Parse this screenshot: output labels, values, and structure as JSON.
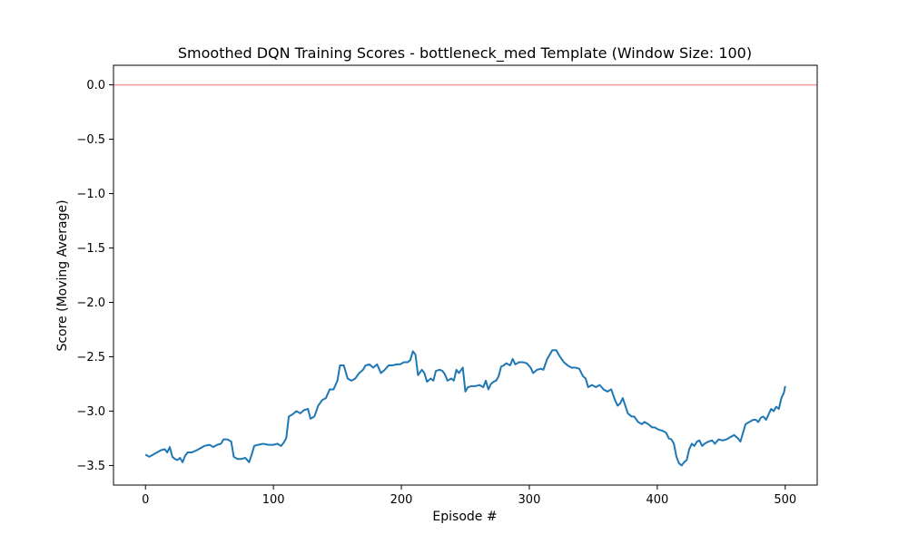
{
  "chart_data": {
    "type": "line",
    "title": "Smoothed DQN Training Scores - bottleneck_med Template (Window Size: 100)",
    "xlabel": "Episode #",
    "ylabel": "Score (Moving Average)",
    "xlim": [
      -25,
      525
    ],
    "ylim": [
      -3.68,
      0.18
    ],
    "xticks": [
      0,
      100,
      200,
      300,
      400,
      500
    ],
    "yticks": [
      0.0,
      -0.5,
      -1.0,
      -1.5,
      -2.0,
      -2.5,
      -3.0,
      -3.5
    ],
    "xtick_labels": [
      "0",
      "100",
      "200",
      "300",
      "400",
      "500"
    ],
    "ytick_labels": [
      "0.0",
      "−0.5",
      "−1.0",
      "−1.5",
      "−2.0",
      "−2.5",
      "−3.0",
      "−3.5"
    ],
    "grid": false,
    "reference_line": {
      "y": 0.0,
      "color": "#ff9999"
    },
    "series": [
      {
        "color": "#1f77b4",
        "points": [
          [
            0,
            -3.4
          ],
          [
            3,
            -3.42
          ],
          [
            6,
            -3.4
          ],
          [
            9,
            -3.38
          ],
          [
            12,
            -3.36
          ],
          [
            15,
            -3.35
          ],
          [
            17,
            -3.38
          ],
          [
            19,
            -3.33
          ],
          [
            21,
            -3.42
          ],
          [
            23,
            -3.44
          ],
          [
            25,
            -3.45
          ],
          [
            27,
            -3.43
          ],
          [
            29,
            -3.47
          ],
          [
            31,
            -3.41
          ],
          [
            33,
            -3.38
          ],
          [
            36,
            -3.38
          ],
          [
            40,
            -3.36
          ],
          [
            43,
            -3.34
          ],
          [
            46,
            -3.32
          ],
          [
            50,
            -3.31
          ],
          [
            53,
            -3.33
          ],
          [
            56,
            -3.31
          ],
          [
            59,
            -3.3
          ],
          [
            61,
            -3.26
          ],
          [
            64,
            -3.26
          ],
          [
            67,
            -3.28
          ],
          [
            69,
            -3.42
          ],
          [
            72,
            -3.44
          ],
          [
            75,
            -3.44
          ],
          [
            78,
            -3.43
          ],
          [
            81,
            -3.47
          ],
          [
            83,
            -3.4
          ],
          [
            85,
            -3.32
          ],
          [
            88,
            -3.31
          ],
          [
            92,
            -3.3
          ],
          [
            96,
            -3.31
          ],
          [
            100,
            -3.31
          ],
          [
            103,
            -3.3
          ],
          [
            106,
            -3.32
          ],
          [
            108,
            -3.29
          ],
          [
            110,
            -3.25
          ],
          [
            112,
            -3.05
          ],
          [
            115,
            -3.03
          ],
          [
            118,
            -3.0
          ],
          [
            121,
            -3.02
          ],
          [
            124,
            -2.99
          ],
          [
            127,
            -2.98
          ],
          [
            129,
            -3.07
          ],
          [
            132,
            -3.05
          ],
          [
            135,
            -2.95
          ],
          [
            138,
            -2.9
          ],
          [
            141,
            -2.88
          ],
          [
            144,
            -2.8
          ],
          [
            147,
            -2.8
          ],
          [
            150,
            -2.72
          ],
          [
            152,
            -2.58
          ],
          [
            155,
            -2.58
          ],
          [
            158,
            -2.7
          ],
          [
            161,
            -2.72
          ],
          [
            164,
            -2.7
          ],
          [
            167,
            -2.65
          ],
          [
            170,
            -2.62
          ],
          [
            172,
            -2.58
          ],
          [
            175,
            -2.57
          ],
          [
            178,
            -2.6
          ],
          [
            181,
            -2.57
          ],
          [
            184,
            -2.65
          ],
          [
            187,
            -2.62
          ],
          [
            190,
            -2.58
          ],
          [
            193,
            -2.58
          ],
          [
            196,
            -2.57
          ],
          [
            199,
            -2.57
          ],
          [
            202,
            -2.55
          ],
          [
            205,
            -2.55
          ],
          [
            207,
            -2.53
          ],
          [
            209,
            -2.45
          ],
          [
            211,
            -2.48
          ],
          [
            213,
            -2.67
          ],
          [
            216,
            -2.62
          ],
          [
            218,
            -2.65
          ],
          [
            220,
            -2.73
          ],
          [
            223,
            -2.7
          ],
          [
            225,
            -2.72
          ],
          [
            227,
            -2.63
          ],
          [
            230,
            -2.62
          ],
          [
            232,
            -2.63
          ],
          [
            234,
            -2.66
          ],
          [
            236,
            -2.72
          ],
          [
            239,
            -2.7
          ],
          [
            241,
            -2.72
          ],
          [
            243,
            -2.62
          ],
          [
            245,
            -2.65
          ],
          [
            248,
            -2.6
          ],
          [
            250,
            -2.82
          ],
          [
            252,
            -2.78
          ],
          [
            255,
            -2.77
          ],
          [
            258,
            -2.77
          ],
          [
            261,
            -2.76
          ],
          [
            264,
            -2.78
          ],
          [
            266,
            -2.72
          ],
          [
            268,
            -2.8
          ],
          [
            270,
            -2.75
          ],
          [
            272,
            -2.73
          ],
          [
            274,
            -2.72
          ],
          [
            276,
            -2.68
          ],
          [
            278,
            -2.59
          ],
          [
            280,
            -2.58
          ],
          [
            282,
            -2.56
          ],
          [
            285,
            -2.58
          ],
          [
            287,
            -2.52
          ],
          [
            289,
            -2.57
          ],
          [
            292,
            -2.55
          ],
          [
            295,
            -2.55
          ],
          [
            298,
            -2.56
          ],
          [
            301,
            -2.6
          ],
          [
            303,
            -2.65
          ],
          [
            306,
            -2.62
          ],
          [
            309,
            -2.61
          ],
          [
            311,
            -2.62
          ],
          [
            314,
            -2.52
          ],
          [
            316,
            -2.48
          ],
          [
            318,
            -2.44
          ],
          [
            321,
            -2.44
          ],
          [
            324,
            -2.5
          ],
          [
            327,
            -2.55
          ],
          [
            330,
            -2.58
          ],
          [
            333,
            -2.6
          ],
          [
            336,
            -2.6
          ],
          [
            339,
            -2.61
          ],
          [
            342,
            -2.68
          ],
          [
            344,
            -2.7
          ],
          [
            346,
            -2.78
          ],
          [
            349,
            -2.76
          ],
          [
            352,
            -2.78
          ],
          [
            355,
            -2.76
          ],
          [
            358,
            -2.8
          ],
          [
            361,
            -2.82
          ],
          [
            364,
            -2.8
          ],
          [
            367,
            -2.9
          ],
          [
            369,
            -2.95
          ],
          [
            371,
            -2.93
          ],
          [
            373,
            -2.88
          ],
          [
            375,
            -2.95
          ],
          [
            377,
            -3.02
          ],
          [
            380,
            -3.05
          ],
          [
            382,
            -3.05
          ],
          [
            385,
            -3.1
          ],
          [
            388,
            -3.12
          ],
          [
            390,
            -3.1
          ],
          [
            393,
            -3.12
          ],
          [
            396,
            -3.15
          ],
          [
            398,
            -3.15
          ],
          [
            401,
            -3.17
          ],
          [
            404,
            -3.18
          ],
          [
            407,
            -3.2
          ],
          [
            409,
            -3.25
          ],
          [
            411,
            -3.26
          ],
          [
            413,
            -3.3
          ],
          [
            415,
            -3.42
          ],
          [
            417,
            -3.48
          ],
          [
            419,
            -3.5
          ],
          [
            421,
            -3.47
          ],
          [
            423,
            -3.45
          ],
          [
            425,
            -3.35
          ],
          [
            427,
            -3.3
          ],
          [
            429,
            -3.32
          ],
          [
            431,
            -3.28
          ],
          [
            433,
            -3.27
          ],
          [
            435,
            -3.32
          ],
          [
            437,
            -3.3
          ],
          [
            440,
            -3.28
          ],
          [
            443,
            -3.27
          ],
          [
            445,
            -3.3
          ],
          [
            448,
            -3.26
          ],
          [
            451,
            -3.27
          ],
          [
            454,
            -3.26
          ],
          [
            457,
            -3.24
          ],
          [
            460,
            -3.22
          ],
          [
            463,
            -3.25
          ],
          [
            465,
            -3.28
          ],
          [
            467,
            -3.2
          ],
          [
            469,
            -3.12
          ],
          [
            472,
            -3.1
          ],
          [
            475,
            -3.08
          ],
          [
            477,
            -3.08
          ],
          [
            479,
            -3.1
          ],
          [
            481,
            -3.06
          ],
          [
            483,
            -3.05
          ],
          [
            485,
            -3.08
          ],
          [
            487,
            -3.03
          ],
          [
            489,
            -2.98
          ],
          [
            491,
            -3.0
          ],
          [
            493,
            -2.96
          ],
          [
            495,
            -2.98
          ],
          [
            497,
            -2.88
          ],
          [
            499,
            -2.83
          ],
          [
            500,
            -2.77
          ]
        ]
      }
    ]
  }
}
